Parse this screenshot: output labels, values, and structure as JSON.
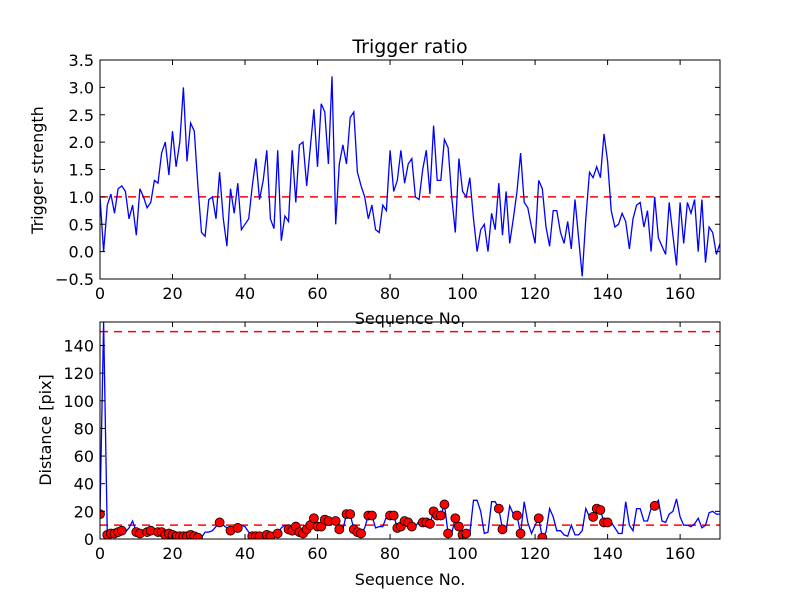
{
  "chart_data": [
    {
      "type": "line",
      "title": "Trigger ratio",
      "xlabel": "Sequence No.",
      "ylabel": "Trigger strength",
      "xlim": [
        0,
        171
      ],
      "ylim": [
        -0.5,
        3.5
      ],
      "xticks": [
        0,
        20,
        40,
        60,
        80,
        100,
        120,
        140,
        160
      ],
      "yticks": [
        -0.5,
        0.0,
        0.5,
        1.0,
        1.5,
        2.0,
        2.5,
        3.0,
        3.5
      ],
      "ytick_labels": [
        "−0.5",
        "0.0",
        "0.5",
        "1.0",
        "1.5",
        "2.0",
        "2.5",
        "3.0",
        "3.5"
      ],
      "grid": false,
      "threshold": {
        "value": 1.0,
        "color": "#ff0000",
        "style": "dashed"
      },
      "series": [
        {
          "name": "trigger",
          "color": "#0000ff",
          "values": [
            1.0,
            0.0,
            0.85,
            1.05,
            0.7,
            1.15,
            1.2,
            1.1,
            0.6,
            0.85,
            0.3,
            1.15,
            1.0,
            0.8,
            0.9,
            1.3,
            1.25,
            1.8,
            2.0,
            1.4,
            2.2,
            1.55,
            2.0,
            3.0,
            1.65,
            2.35,
            2.2,
            1.2,
            0.35,
            0.28,
            0.95,
            1.0,
            0.6,
            1.45,
            0.6,
            0.1,
            1.15,
            0.7,
            1.25,
            0.4,
            0.5,
            0.6,
            1.2,
            1.7,
            0.95,
            1.3,
            1.85,
            0.6,
            0.42,
            1.85,
            0.2,
            0.65,
            0.55,
            1.85,
            0.9,
            1.95,
            2.0,
            1.2,
            1.9,
            2.6,
            1.55,
            2.7,
            2.55,
            1.6,
            3.2,
            0.5,
            1.6,
            1.95,
            1.6,
            2.45,
            2.55,
            1.45,
            1.2,
            1.0,
            0.6,
            0.85,
            0.4,
            0.35,
            0.85,
            0.75,
            1.85,
            1.1,
            1.3,
            1.85,
            1.25,
            1.6,
            1.7,
            1.0,
            0.95,
            1.5,
            1.85,
            1.05,
            2.3,
            1.3,
            1.3,
            2.05,
            1.9,
            1.0,
            0.35,
            1.7,
            1.1,
            1.0,
            1.35,
            0.6,
            0.0,
            0.4,
            0.5,
            0.0,
            0.7,
            0.4,
            1.25,
            0.3,
            1.1,
            0.15,
            0.6,
            1.1,
            1.8,
            0.9,
            0.8,
            0.45,
            0.15,
            1.3,
            1.15,
            0.45,
            0.1,
            0.75,
            0.75,
            0.35,
            0.15,
            0.55,
            0.05,
            0.95,
            0.25,
            -0.45,
            0.6,
            1.45,
            1.35,
            1.55,
            1.35,
            2.15,
            1.65,
            0.75,
            0.45,
            0.5,
            0.7,
            0.55,
            0.05,
            0.6,
            0.85,
            0.9,
            0.45,
            0.75,
            0.0,
            1.0,
            0.25,
            0.1,
            -0.05,
            0.9,
            0.3,
            -0.25,
            0.9,
            0.15,
            0.9,
            0.7,
            0.95,
            0.0,
            0.95,
            -0.2,
            0.45,
            0.35,
            -0.05,
            0.15
          ]
        }
      ]
    },
    {
      "type": "line",
      "title": "",
      "xlabel": "Sequence No.",
      "ylabel": "Distance [pix]",
      "xlim": [
        0,
        171
      ],
      "ylim": [
        0,
        157
      ],
      "xticks": [
        0,
        20,
        40,
        60,
        80,
        100,
        120,
        140,
        160
      ],
      "yticks": [
        0,
        20,
        40,
        60,
        80,
        100,
        120,
        140
      ],
      "ytick_labels": [
        "0",
        "20",
        "40",
        "60",
        "80",
        "100",
        "120",
        "140"
      ],
      "grid": false,
      "thresholds": [
        {
          "value": 150,
          "color": "#ff0000",
          "style": "dashed"
        },
        {
          "value": 10,
          "color": "#ff0000",
          "style": "dashed"
        }
      ],
      "series": [
        {
          "name": "distance",
          "color": "#0000ff",
          "values": [
            18,
            157,
            3,
            4,
            4,
            5,
            6,
            5,
            8,
            13,
            5,
            4,
            4,
            5,
            6,
            4,
            5,
            5,
            3,
            4,
            3,
            2,
            2,
            2,
            2,
            3,
            2,
            1,
            1,
            5,
            5,
            6,
            9,
            12,
            10,
            8,
            6,
            7,
            8,
            10,
            9,
            5,
            2,
            2,
            2,
            3,
            3,
            2,
            2,
            4,
            8,
            10,
            7,
            6,
            9,
            5,
            4,
            7,
            10,
            15,
            9,
            9,
            14,
            13,
            13,
            13,
            7,
            7,
            18,
            18,
            7,
            5,
            4,
            8,
            17,
            17,
            8,
            9,
            9,
            16,
            17,
            17,
            8,
            9,
            13,
            12,
            9,
            9,
            13,
            12,
            12,
            11,
            20,
            17,
            17,
            25,
            4,
            4,
            15,
            9,
            3,
            4,
            4,
            28,
            28,
            20,
            4,
            5,
            27,
            27,
            22,
            7,
            6,
            24,
            18,
            17,
            4,
            27,
            12,
            4,
            10,
            15,
            1,
            5,
            22,
            16,
            6,
            6,
            3,
            2,
            10,
            3,
            3,
            6,
            22,
            16,
            16,
            22,
            21,
            12,
            12,
            12,
            8,
            4,
            4,
            27,
            10,
            6,
            22,
            22,
            13,
            13,
            22,
            24,
            28,
            13,
            12,
            18,
            20,
            29,
            16,
            10,
            10,
            9,
            11,
            15,
            8,
            10,
            19,
            20,
            18,
            18
          ]
        },
        {
          "name": "low-trigger markers",
          "color": "#ff0000",
          "marker": "circle",
          "indices": [
            0,
            2,
            3,
            4,
            5,
            6,
            10,
            11,
            13,
            14,
            16,
            17,
            18,
            19,
            20,
            21,
            22,
            23,
            24,
            25,
            26,
            27,
            33,
            36,
            38,
            42,
            43,
            44,
            46,
            47,
            49,
            52,
            53,
            54,
            55,
            56,
            57,
            58,
            59,
            60,
            61,
            62,
            63,
            65,
            66,
            68,
            69,
            70,
            71,
            72,
            74,
            75,
            80,
            81,
            82,
            83,
            84,
            85,
            86,
            89,
            90,
            91,
            92,
            93,
            94,
            95,
            96,
            98,
            99,
            100,
            101,
            110,
            111,
            115,
            116,
            121,
            122,
            136,
            137,
            138,
            139,
            140,
            153
          ]
        }
      ]
    }
  ]
}
